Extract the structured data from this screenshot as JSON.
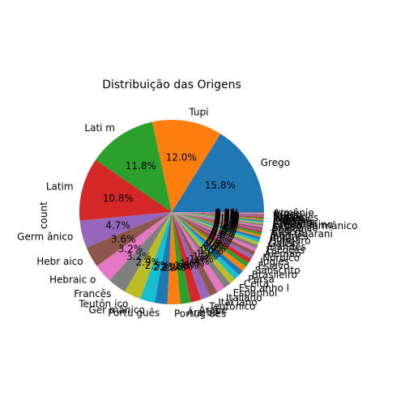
{
  "chart_data": {
    "type": "pie",
    "title": "Distribuição das Origens",
    "ylabel": "count",
    "start_angle_deg": 0,
    "direction": "counterclockwise",
    "slices": [
      {
        "label": "Grego",
        "percent": 15.8,
        "color": "#1f77b4"
      },
      {
        "label": "Tupi",
        "percent": 12.0,
        "color": "#ff7f0e"
      },
      {
        "label": "Lati m",
        "percent": 11.8,
        "color": "#2ca02c"
      },
      {
        "label": "Latim",
        "percent": 10.8,
        "color": "#d62728"
      },
      {
        "label": "Germ ânico",
        "percent": 4.7,
        "color": "#9467bd"
      },
      {
        "label": "Hebr aico",
        "percent": 3.6,
        "color": "#8c564b"
      },
      {
        "label": "Hebraic o",
        "percent": 3.2,
        "color": "#e377c2"
      },
      {
        "label": "Francês",
        "percent": 3.2,
        "color": "#7f7f7f"
      },
      {
        "label": "Teutôn ico",
        "percent": 2.9,
        "color": "#bcbd22"
      },
      {
        "label": "Ger mânico",
        "percent": 2.5,
        "color": "#17becf"
      },
      {
        "label": "Portu guês",
        "percent": 2.2,
        "color": "#1f77b4"
      },
      {
        "label": "Portug uês",
        "percent": 2.2,
        "color": "#ff7f0e"
      },
      {
        "label": "Ára be",
        "percent": 1.8,
        "color": "#2ca02c"
      },
      {
        "label": "Árabe",
        "percent": 1.8,
        "color": "#d62728"
      },
      {
        "label": "Teutônico",
        "percent": 1.6,
        "color": "#9467bd"
      },
      {
        "label": "Ital iano",
        "percent": 1.4,
        "color": "#8c564b"
      },
      {
        "label": "Italiano",
        "percent": 1.4,
        "color": "#e377c2"
      },
      {
        "label": "Espanhol",
        "percent": 1.2,
        "color": "#7f7f7f"
      },
      {
        "label": "Esp anho l",
        "percent": 1.1,
        "color": "#bcbd22"
      },
      {
        "label": "Celta",
        "percent": 1.0,
        "color": "#17becf"
      },
      {
        "label": "Persa",
        "percent": 0.9,
        "color": "#1f77b4"
      },
      {
        "label": "Brasileiro",
        "percent": 0.9,
        "color": "#ff7f0e"
      },
      {
        "label": "Sânscrito",
        "percent": 0.8,
        "color": "#2ca02c"
      },
      {
        "label": "Eslavo",
        "percent": 0.8,
        "color": "#d62728"
      },
      {
        "label": "Inglês",
        "percent": 0.7,
        "color": "#9467bd"
      },
      {
        "label": "Nórdico",
        "percent": 0.7,
        "color": "#8c564b"
      },
      {
        "label": "Alemão",
        "percent": 0.6,
        "color": "#e377c2"
      },
      {
        "label": "Escocês",
        "percent": 0.6,
        "color": "#7f7f7f"
      },
      {
        "label": "Irlandês",
        "percent": 0.5,
        "color": "#bcbd22"
      },
      {
        "label": "Galês",
        "percent": 0.5,
        "color": "#17becf"
      },
      {
        "label": "Húngaro",
        "percent": 0.4,
        "color": "#1f77b4"
      },
      {
        "label": "Russo",
        "percent": 0.4,
        "color": "#ff7f0e"
      },
      {
        "label": "Japonês",
        "percent": 0.4,
        "color": "#2ca02c"
      },
      {
        "label": "Tupi-Guarani",
        "percent": 0.3,
        "color": "#d62728"
      },
      {
        "label": "Basco",
        "percent": 0.3,
        "color": "#9467bd"
      },
      {
        "label": "Egípcio",
        "percent": 0.3,
        "color": "#8c564b"
      },
      {
        "label": "Aramaico",
        "percent": 0.3,
        "color": "#e377c2"
      },
      {
        "label": "Latino-germânico",
        "percent": 0.3,
        "color": "#7f7f7f"
      },
      {
        "label": "Grego-latino",
        "percent": 0.2,
        "color": "#bcbd22"
      },
      {
        "label": "Africano",
        "percent": 0.2,
        "color": "#17becf"
      },
      {
        "label": "Indígena",
        "percent": 0.2,
        "color": "#1f77b4"
      },
      {
        "label": "Chinês",
        "percent": 0.2,
        "color": "#ff7f0e"
      },
      {
        "label": "Polonês",
        "percent": 0.2,
        "color": "#2ca02c"
      },
      {
        "label": "Holandês",
        "percent": 0.2,
        "color": "#d62728"
      },
      {
        "label": "Turco",
        "percent": 0.2,
        "color": "#9467bd"
      },
      {
        "label": "Sueco",
        "percent": 0.2,
        "color": "#8c564b"
      },
      {
        "label": "Hindu",
        "percent": 0.2,
        "color": "#e377c2"
      },
      {
        "label": "Armênio",
        "percent": 0.2,
        "color": "#7f7f7f"
      }
    ]
  }
}
